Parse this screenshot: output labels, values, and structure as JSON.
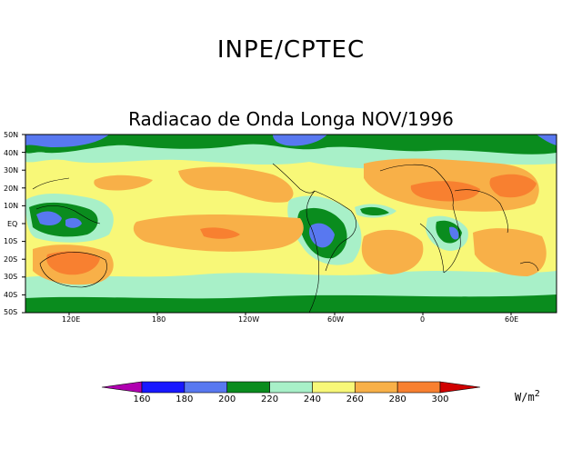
{
  "title": "INPE/CPTEC",
  "subtitle": "Radiacao de Onda Longa NOV/1996",
  "map": {
    "lat_labels": [
      "50N",
      "40N",
      "30N",
      "20N",
      "10N",
      "EQ",
      "10S",
      "20S",
      "30S",
      "40S",
      "50S"
    ],
    "lon_labels": [
      "120E",
      "180",
      "120W",
      "60W",
      "0",
      "60E"
    ]
  },
  "colorbar": {
    "levels": [
      "160",
      "180",
      "200",
      "220",
      "240",
      "260",
      "280",
      "300"
    ],
    "colors": [
      "#b000b0",
      "#1818ff",
      "#5878f0",
      "#0a8c1e",
      "#a8f0c8",
      "#f8f878",
      "#f8b048",
      "#f88030",
      "#d00000"
    ],
    "unit_base": "W/m",
    "unit_exp": "2"
  },
  "colors": {
    "ocean_base": "#f8f878",
    "green": "#0a8c1e",
    "light_green": "#a8f0c8",
    "light_orange": "#f8b048",
    "dark_orange": "#f88030",
    "light_blue": "#5878f0",
    "dark_blue": "#1818ff"
  }
}
